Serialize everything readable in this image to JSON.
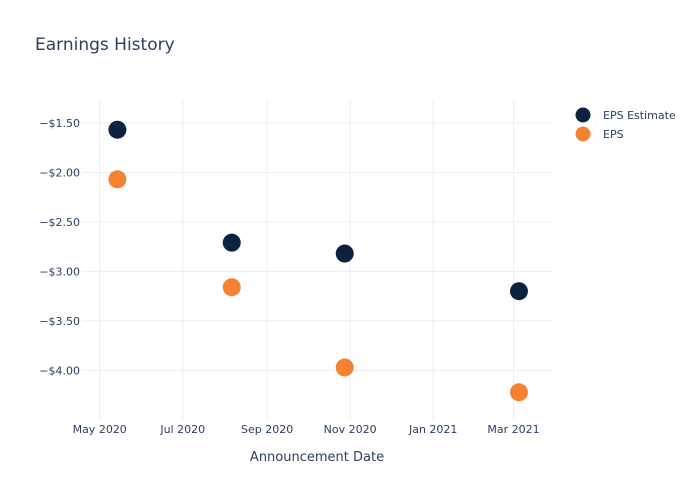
{
  "chart_data": {
    "type": "scatter",
    "title": "Earnings History",
    "xlabel": "Announcement Date",
    "ylabel": "",
    "x_ticks": [
      "May 2020",
      "Jul 2020",
      "Sep 2020",
      "Nov 2020",
      "Jan 2021",
      "Mar 2021"
    ],
    "y_ticks": [
      "−$1.50",
      "−$2.00",
      "−$2.50",
      "−$3.00",
      "−$3.50",
      "−$4.00"
    ],
    "y_tick_values": [
      -1.5,
      -2.0,
      -2.5,
      -3.0,
      -3.5,
      -4.0
    ],
    "x_tick_dates": [
      "2020-05-01",
      "2020-07-01",
      "2020-09-01",
      "2020-11-01",
      "2021-01-01",
      "2021-03-01"
    ],
    "xlim": [
      "2020-04-18",
      "2021-03-30"
    ],
    "ylim": [
      -4.5,
      -1.27
    ],
    "grid": true,
    "legend_position": "top-right",
    "x": [
      "2020-05-14",
      "2020-08-06",
      "2020-10-28",
      "2021-03-05"
    ],
    "series": [
      {
        "name": "EPS Estimate",
        "color": "#0d2240",
        "values": [
          -1.57,
          -2.71,
          -2.82,
          -3.2
        ]
      },
      {
        "name": "EPS",
        "color": "#f58233",
        "values": [
          -2.07,
          -3.16,
          -3.97,
          -4.22
        ]
      }
    ]
  }
}
